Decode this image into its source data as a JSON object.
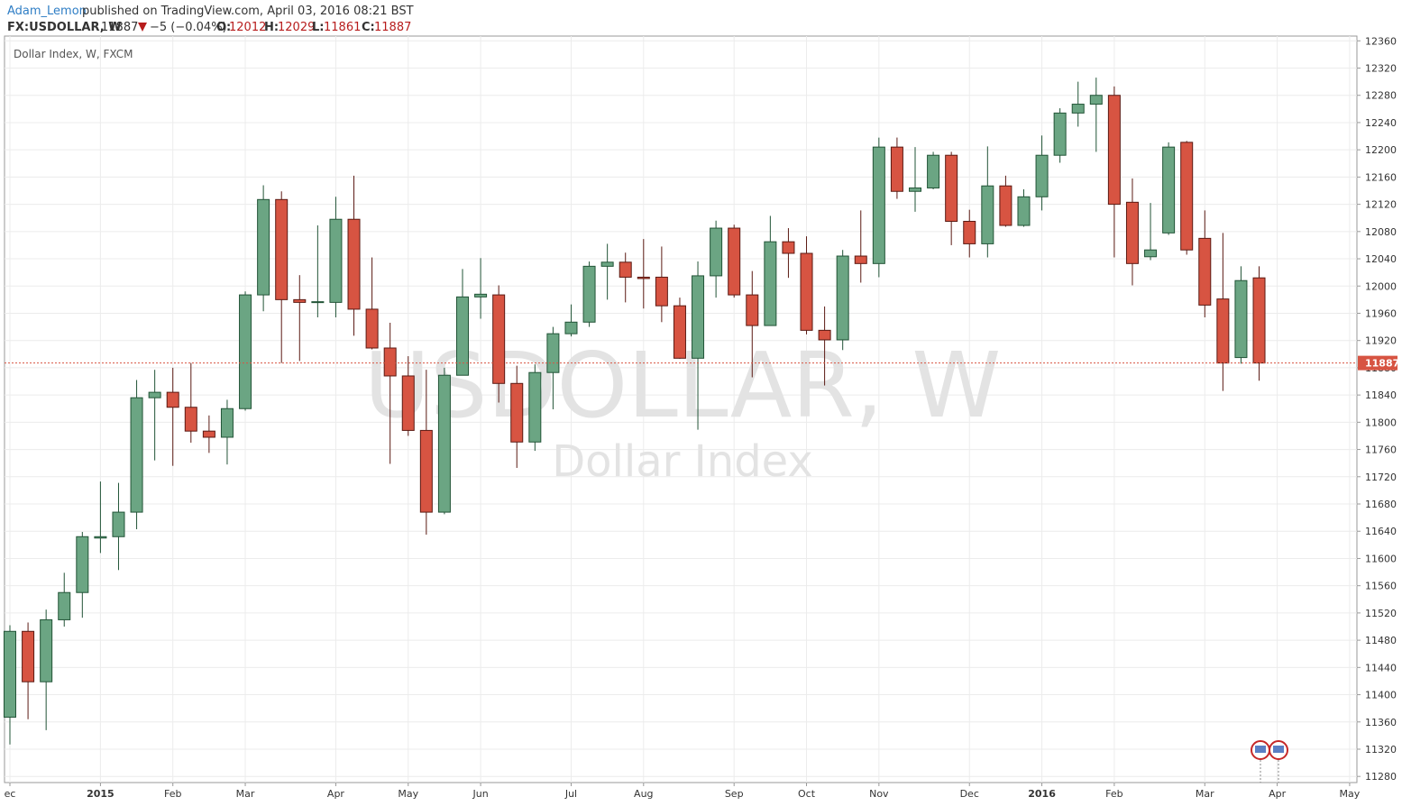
{
  "header": {
    "author": "Adam_Lemon",
    "published": "published on TradingView.com, April 03, 2016 08:21 BST",
    "symbol": "FX:USDOLLAR, W",
    "change": "−5 (−0.04%)",
    "o": "O:",
    "h": "H:",
    "l": "L:",
    "c": "C:"
  },
  "chart_data": {
    "type": "candlestick",
    "legend": "Dollar Index, W, FXCM",
    "watermark": "USDOLLAR, W",
    "watermark_subtitle": "Dollar Index",
    "up_color": "#6ba583",
    "down_color": "#d75442",
    "grid": true,
    "categories": [
      "ec",
      null,
      null,
      null,
      null,
      "2015",
      null,
      null,
      null,
      "Feb",
      null,
      null,
      null,
      "Mar",
      null,
      null,
      null,
      null,
      "Apr",
      null,
      null,
      null,
      "May",
      null,
      null,
      null,
      "Jun",
      null,
      null,
      null,
      null,
      "Jul",
      null,
      null,
      null,
      "Aug",
      null,
      null,
      null,
      null,
      "Sep",
      null,
      null,
      null,
      "Oct",
      null,
      null,
      null,
      "Nov",
      null,
      null,
      null,
      null,
      "Dec",
      null,
      null,
      null,
      "2016",
      null,
      null,
      null,
      "Feb",
      null,
      null,
      null,
      null,
      "Mar",
      null,
      null,
      null,
      "Apr",
      null,
      null,
      null,
      "May"
    ],
    "open": [
      11367,
      11493,
      11419,
      11510,
      11550,
      11630,
      11632,
      11668,
      11836,
      11844,
      11822,
      11787,
      11778,
      11820,
      11987,
      12127,
      11980,
      11976,
      11976,
      12098,
      11966,
      11909,
      11868,
      11788,
      11668,
      11869,
      11984,
      11987,
      11857,
      11771,
      11873,
      11930,
      11947,
      12029,
      12035,
      12013,
      12013,
      11971,
      11894,
      12015,
      12085,
      11987,
      11942,
      12065,
      12048,
      11935,
      11921,
      12044,
      12033,
      12204,
      12139,
      12144,
      12192,
      12095,
      12062,
      12147,
      12089,
      12131,
      12192,
      12254,
      12267,
      12280,
      12123,
      12043,
      12078,
      12211,
      12070,
      11981,
      11895,
      12012,
      null,
      null,
      null,
      null,
      null
    ],
    "high": [
      11502,
      11506,
      11525,
      11579,
      11639,
      11713,
      11711,
      11862,
      11877,
      11880,
      11887,
      11810,
      11833,
      11992,
      12148,
      12139,
      12016,
      12089,
      12131,
      12162,
      12042,
      11946,
      11897,
      11877,
      11880,
      12025,
      12041,
      12001,
      11883,
      11885,
      11940,
      11973,
      12036,
      12062,
      12049,
      12069,
      12058,
      11983,
      12036,
      12096,
      12090,
      12022,
      12103,
      12085,
      12073,
      11970,
      12053,
      12111,
      12218,
      12218,
      12204,
      12197,
      12197,
      12112,
      12205,
      12162,
      12142,
      12221,
      12261,
      12300,
      12306,
      12293,
      12158,
      12122,
      12211,
      12213,
      12111,
      12078,
      12029,
      12029,
      null,
      null,
      null,
      null,
      null
    ],
    "low": [
      11327,
      11364,
      11348,
      11500,
      11513,
      11608,
      11583,
      11643,
      11744,
      11736,
      11770,
      11755,
      11738,
      11817,
      11963,
      11887,
      11890,
      11954,
      11954,
      11927,
      11907,
      11739,
      11780,
      11635,
      11665,
      11869,
      11952,
      11829,
      11733,
      11758,
      11819,
      11926,
      11940,
      11980,
      11976,
      11967,
      11947,
      11893,
      11789,
      11983,
      11983,
      11866,
      11942,
      12012,
      11929,
      11854,
      11906,
      12005,
      12013,
      12128,
      12109,
      12142,
      12060,
      12042,
      12042,
      12087,
      12087,
      12111,
      12181,
      12234,
      12197,
      12042,
      12001,
      12038,
      12075,
      12046,
      11954,
      11846,
      11886,
      11861,
      null,
      null,
      null,
      null,
      null
    ],
    "close": [
      11493,
      11419,
      11510,
      11550,
      11632,
      11632,
      11668,
      11836,
      11844,
      11822,
      11787,
      11778,
      11820,
      11987,
      12127,
      11980,
      11976,
      11977,
      12098,
      11966,
      11909,
      11868,
      11788,
      11668,
      11869,
      11984,
      11988,
      11857,
      11771,
      11873,
      11930,
      11947,
      12029,
      12035,
      12013,
      12011,
      11971,
      11894,
      12015,
      12085,
      11987,
      11942,
      12065,
      12048,
      11935,
      11921,
      12044,
      12033,
      12204,
      12139,
      12144,
      12192,
      12095,
      12062,
      12147,
      12089,
      12131,
      12192,
      12254,
      12267,
      12280,
      12120,
      12033,
      12053,
      12204,
      12053,
      11972,
      11887,
      12008,
      11887,
      null,
      null,
      null,
      null,
      null
    ],
    "ylim": [
      11271,
      12367
    ],
    "yticks": [
      11280,
      11320,
      11360,
      11400,
      11440,
      11480,
      11520,
      11560,
      11600,
      11640,
      11680,
      11720,
      11760,
      11800,
      11840,
      11880,
      11920,
      11960,
      12000,
      12040,
      12080,
      12120,
      12160,
      12200,
      12240,
      12280,
      12320,
      12360
    ]
  }
}
